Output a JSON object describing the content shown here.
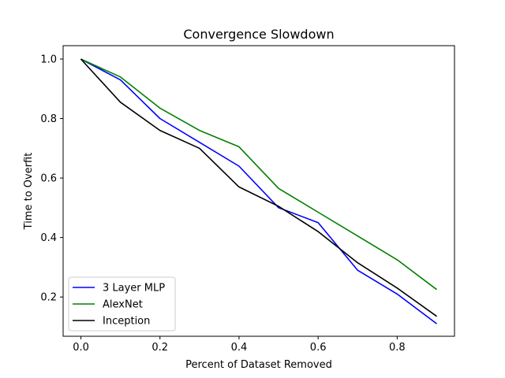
{
  "chart_data": {
    "type": "line",
    "title": "Convergence Slowdown",
    "xlabel": "Percent of Dataset Removed",
    "ylabel": "Time to Overfit",
    "xlim": [
      -0.045,
      0.945
    ],
    "ylim": [
      0.068,
      1.045
    ],
    "xticks": [
      0.0,
      0.2,
      0.4,
      0.6,
      0.8
    ],
    "xtick_labels": [
      "0.0",
      "0.2",
      "0.4",
      "0.6",
      "0.8"
    ],
    "yticks": [
      0.2,
      0.4,
      0.6,
      0.8,
      1.0
    ],
    "ytick_labels": [
      "0.2",
      "0.4",
      "0.6",
      "0.8",
      "1.0"
    ],
    "grid": false,
    "legend_position": "lower-left",
    "x": [
      0.0,
      0.1,
      0.2,
      0.3,
      0.4,
      0.5,
      0.6,
      0.7,
      0.8,
      0.9
    ],
    "series": [
      {
        "name": "3 Layer MLP",
        "color": "#0000ff",
        "values": [
          1.0,
          0.93,
          0.8,
          0.72,
          0.64,
          0.5,
          0.45,
          0.29,
          0.21,
          0.11
        ]
      },
      {
        "name": "AlexNet",
        "color": "#008000",
        "values": [
          1.0,
          0.94,
          0.835,
          0.76,
          0.705,
          0.565,
          0.485,
          0.405,
          0.325,
          0.225
        ]
      },
      {
        "name": "Inception",
        "color": "#000000",
        "values": [
          1.0,
          0.855,
          0.76,
          0.7,
          0.57,
          0.505,
          0.42,
          0.315,
          0.23,
          0.135
        ]
      }
    ]
  }
}
